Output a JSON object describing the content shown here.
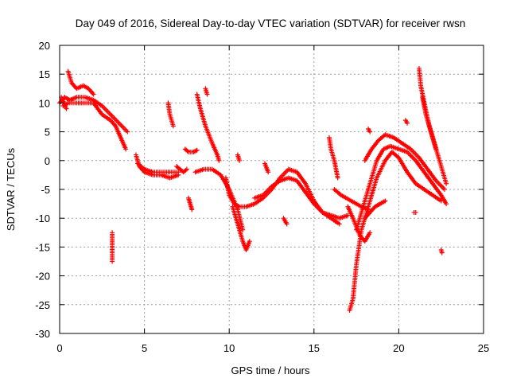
{
  "chart_data": {
    "type": "scatter",
    "title": "Day 049 of 2016, Sidereal Day-to-day VTEC variation (SDTVAR) for receiver rwsn",
    "xlabel": "GPS time / hours",
    "ylabel": "SDTVAR / TECUs",
    "xlim": [
      0,
      25
    ],
    "ylim": [
      -30,
      20
    ],
    "xticks": [
      "0",
      "5",
      "10",
      "15",
      "20",
      "25"
    ],
    "yticks": [
      "20",
      "15",
      "10",
      "5",
      "0",
      "-5",
      "-10",
      "-15",
      "-20",
      "-25",
      "-30"
    ],
    "grid": true,
    "marker": "+",
    "series_color": "#ff0000",
    "segments": [
      {
        "points": [
          [
            0.0,
            10
          ],
          [
            0.3,
            11
          ],
          [
            0.6,
            10.5
          ],
          [
            1.0,
            11
          ],
          [
            1.5,
            11
          ],
          [
            2.0,
            10.5
          ],
          [
            2.5,
            9.5
          ],
          [
            3.0,
            8
          ],
          [
            3.5,
            6.5
          ],
          [
            4.0,
            5
          ]
        ]
      },
      {
        "points": [
          [
            0.2,
            9.5
          ],
          [
            0.5,
            10
          ],
          [
            1.0,
            10
          ],
          [
            1.5,
            10
          ],
          [
            2.0,
            10
          ],
          [
            2.5,
            8
          ],
          [
            3.0,
            7
          ],
          [
            3.3,
            6
          ],
          [
            3.6,
            4
          ],
          [
            3.9,
            2
          ]
        ]
      },
      {
        "points": [
          [
            0.5,
            15.5
          ],
          [
            0.7,
            13.5
          ],
          [
            1.0,
            12.5
          ],
          [
            1.4,
            13
          ],
          [
            1.7,
            12.5
          ],
          [
            2.0,
            11.5
          ]
        ]
      },
      {
        "points": [
          [
            0.1,
            11
          ],
          [
            0.25,
            10
          ],
          [
            0.4,
            9
          ]
        ]
      },
      {
        "points": [
          [
            3.1,
            -12.5
          ],
          [
            3.1,
            -14
          ],
          [
            3.1,
            -16
          ],
          [
            3.1,
            -17.5
          ]
        ]
      },
      {
        "points": [
          [
            4.5,
            1
          ],
          [
            4.7,
            -1
          ],
          [
            5.0,
            -2
          ],
          [
            5.5,
            -2.5
          ],
          [
            6.0,
            -2.5
          ],
          [
            6.5,
            -3
          ],
          [
            7.0,
            -2.5
          ]
        ]
      },
      {
        "points": [
          [
            4.6,
            -0.5
          ],
          [
            5.0,
            -1.5
          ],
          [
            5.5,
            -2
          ],
          [
            6.0,
            -2
          ],
          [
            6.5,
            -2
          ],
          [
            7.0,
            -2
          ]
        ]
      },
      {
        "points": [
          [
            6.4,
            10
          ],
          [
            6.5,
            8
          ],
          [
            6.7,
            6
          ]
        ]
      },
      {
        "points": [
          [
            6.9,
            -1
          ],
          [
            7.1,
            -1.5
          ],
          [
            7.3,
            -2
          ],
          [
            7.5,
            -1.5
          ]
        ]
      },
      {
        "points": [
          [
            7.4,
            2
          ],
          [
            7.6,
            1.5
          ],
          [
            7.9,
            1.5
          ],
          [
            8.1,
            1.8
          ]
        ]
      },
      {
        "points": [
          [
            7.6,
            -6.5
          ],
          [
            7.7,
            -7.5
          ],
          [
            7.8,
            -8.5
          ]
        ]
      },
      {
        "points": [
          [
            8.0,
            -2
          ],
          [
            8.5,
            -1.5
          ],
          [
            9.0,
            -1.5
          ],
          [
            9.5,
            -2.5
          ],
          [
            10.0,
            -5
          ],
          [
            10.5,
            -8.5
          ],
          [
            10.8,
            -12
          ]
        ]
      },
      {
        "points": [
          [
            8.1,
            11.5
          ],
          [
            8.3,
            9
          ],
          [
            8.6,
            6
          ],
          [
            9.0,
            3
          ],
          [
            9.3,
            1
          ],
          [
            9.4,
            0
          ]
        ]
      },
      {
        "points": [
          [
            8.6,
            12.5
          ],
          [
            8.7,
            11.5
          ]
        ]
      },
      {
        "points": [
          [
            9.8,
            -3
          ],
          [
            10.0,
            -6
          ],
          [
            10.3,
            -7.5
          ],
          [
            10.6,
            -8
          ],
          [
            11.0,
            -8
          ],
          [
            11.5,
            -7.5
          ],
          [
            12.0,
            -6.5
          ],
          [
            12.5,
            -5
          ],
          [
            13.0,
            -3
          ],
          [
            13.5,
            -1.5
          ],
          [
            14.0,
            -2
          ],
          [
            14.5,
            -4
          ],
          [
            15.0,
            -7
          ],
          [
            15.5,
            -9
          ],
          [
            16.0,
            -9.5
          ],
          [
            16.5,
            -10
          ],
          [
            17.0,
            -9.5
          ]
        ]
      },
      {
        "points": [
          [
            10.2,
            -8
          ],
          [
            10.5,
            -11
          ],
          [
            10.8,
            -14
          ],
          [
            11.0,
            -15.5
          ],
          [
            11.2,
            -14
          ]
        ]
      },
      {
        "points": [
          [
            11.5,
            -6.5
          ],
          [
            12.0,
            -6
          ],
          [
            12.5,
            -4.5
          ],
          [
            13.0,
            -3.5
          ],
          [
            13.5,
            -3
          ],
          [
            14.0,
            -3.5
          ],
          [
            14.5,
            -5.5
          ],
          [
            15.0,
            -7.5
          ],
          [
            15.5,
            -9
          ],
          [
            16.0,
            -10
          ],
          [
            16.5,
            -11
          ]
        ]
      },
      {
        "points": [
          [
            10.5,
            1
          ],
          [
            10.6,
            0
          ]
        ]
      },
      {
        "points": [
          [
            12.1,
            -0.5
          ],
          [
            12.3,
            -2
          ]
        ]
      },
      {
        "points": [
          [
            13.2,
            -10
          ],
          [
            13.3,
            -10.5
          ],
          [
            13.4,
            -11
          ]
        ]
      },
      {
        "points": [
          [
            15.9,
            4
          ],
          [
            16.0,
            2
          ],
          [
            16.2,
            0
          ],
          [
            16.4,
            -3
          ]
        ]
      },
      {
        "points": [
          [
            16.2,
            -5
          ],
          [
            16.6,
            -6
          ],
          [
            17.2,
            -7
          ],
          [
            17.8,
            -8
          ],
          [
            18.2,
            -8.5
          ]
        ]
      },
      {
        "points": [
          [
            17.0,
            -8
          ],
          [
            17.3,
            -10
          ],
          [
            17.7,
            -13
          ],
          [
            18.0,
            -14
          ],
          [
            18.3,
            -12.5
          ]
        ]
      },
      {
        "points": [
          [
            17.1,
            -26
          ],
          [
            17.3,
            -24
          ],
          [
            17.5,
            -18
          ],
          [
            17.8,
            -12
          ],
          [
            18.2,
            -8
          ],
          [
            18.7,
            -3
          ],
          [
            19.2,
            0
          ],
          [
            19.6,
            1.5
          ],
          [
            20.0,
            0.5
          ],
          [
            20.5,
            -2
          ],
          [
            21.0,
            -4
          ],
          [
            21.5,
            -5
          ],
          [
            22.0,
            -6
          ],
          [
            22.5,
            -7
          ]
        ]
      },
      {
        "points": [
          [
            17.5,
            -12
          ],
          [
            17.9,
            -8
          ],
          [
            18.3,
            -4
          ],
          [
            18.7,
            0
          ],
          [
            19.1,
            2
          ],
          [
            19.5,
            2.5
          ],
          [
            20.0,
            2
          ],
          [
            20.5,
            1.5
          ],
          [
            21.0,
            0
          ],
          [
            21.5,
            -2
          ],
          [
            22.0,
            -4
          ],
          [
            22.5,
            -6
          ],
          [
            22.8,
            -7.5
          ]
        ]
      },
      {
        "points": [
          [
            18.0,
            -10
          ],
          [
            18.3,
            -9
          ],
          [
            18.6,
            -8
          ],
          [
            18.9,
            -7.5
          ],
          [
            19.2,
            -7
          ]
        ]
      },
      {
        "points": [
          [
            18.0,
            0
          ],
          [
            18.4,
            2
          ],
          [
            18.8,
            3.5
          ],
          [
            19.2,
            4.5
          ],
          [
            19.7,
            4
          ],
          [
            20.2,
            3
          ],
          [
            20.7,
            2
          ],
          [
            21.2,
            0.5
          ],
          [
            21.7,
            -1.5
          ],
          [
            22.2,
            -3.5
          ],
          [
            22.7,
            -5
          ]
        ]
      },
      {
        "points": [
          [
            18.2,
            5.5
          ],
          [
            18.3,
            5
          ]
        ]
      },
      {
        "points": [
          [
            20.4,
            7
          ],
          [
            20.5,
            6.5
          ]
        ]
      },
      {
        "points": [
          [
            20.9,
            -9
          ],
          [
            21.0,
            -9
          ]
        ]
      },
      {
        "points": [
          [
            21.2,
            16
          ],
          [
            21.3,
            13
          ],
          [
            21.5,
            10
          ],
          [
            21.8,
            6
          ],
          [
            22.1,
            3
          ],
          [
            22.4,
            0
          ],
          [
            22.6,
            -2
          ],
          [
            22.8,
            -4
          ]
        ]
      },
      {
        "points": [
          [
            21.4,
            11
          ],
          [
            21.6,
            8
          ],
          [
            21.9,
            5
          ],
          [
            22.2,
            2
          ]
        ]
      },
      {
        "points": [
          [
            22.5,
            -15.5
          ],
          [
            22.55,
            -16
          ]
        ]
      }
    ]
  }
}
